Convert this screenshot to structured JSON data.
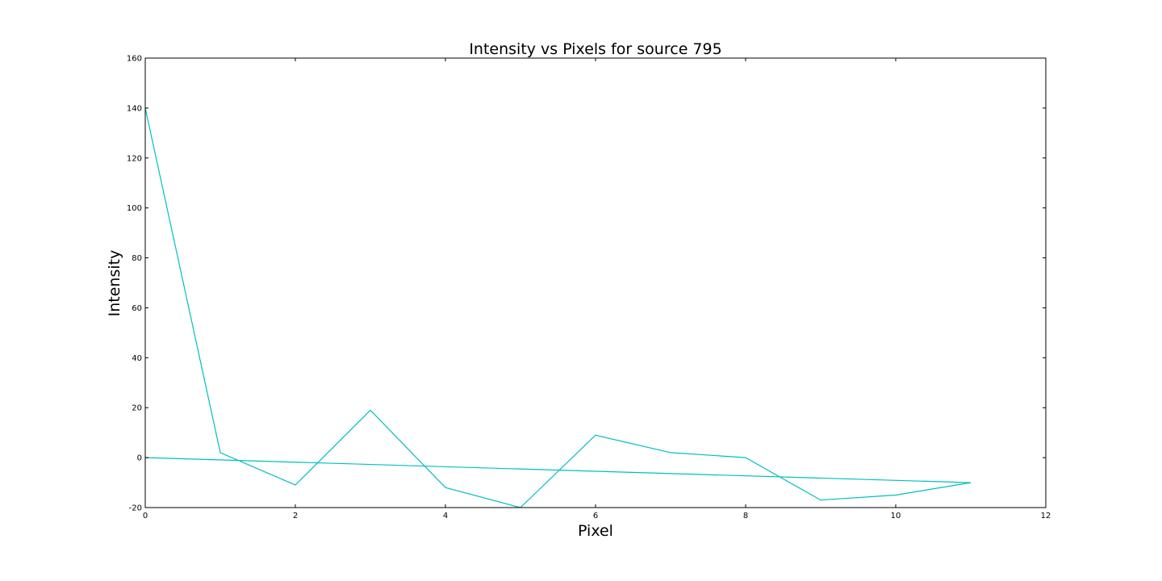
{
  "chart_data": {
    "type": "line",
    "title": "Intensity vs Pixels for source 795",
    "xlabel": "Pixel",
    "ylabel": "Intensity",
    "xlim": [
      0,
      12
    ],
    "ylim": [
      -20,
      160
    ],
    "xticks": [
      0,
      2,
      4,
      6,
      8,
      10,
      12
    ],
    "yticks": [
      -20,
      0,
      20,
      40,
      60,
      80,
      100,
      120,
      140,
      160
    ],
    "grid": false,
    "legend": "none",
    "series": [
      {
        "color": "#00bfbf",
        "x": [
          0,
          1,
          2,
          3,
          4,
          5,
          6,
          7,
          8,
          9,
          10,
          11,
          0
        ],
        "y": [
          140,
          2,
          -11,
          19,
          -12,
          -20,
          9,
          2,
          0,
          -17,
          -15,
          -10,
          0
        ]
      }
    ]
  }
}
